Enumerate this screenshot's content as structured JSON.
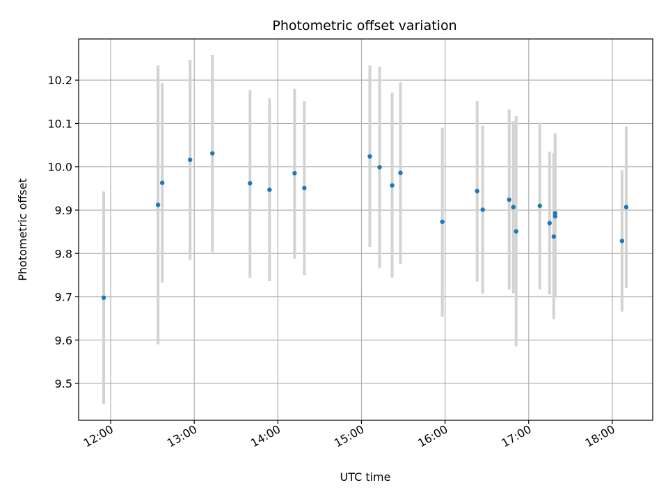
{
  "chart_data": {
    "type": "scatter",
    "title": "Photometric offset variation",
    "xlabel": "UTC time",
    "ylabel": "Photometric offset",
    "xlim": [
      "11:37",
      "18:29"
    ],
    "ylim": [
      9.415,
      10.295
    ],
    "grid": true,
    "x_ticks": [
      "12:00",
      "13:00",
      "14:00",
      "15:00",
      "16:00",
      "17:00",
      "18:00"
    ],
    "y_ticks": [
      "9.5",
      "9.6",
      "9.7",
      "9.8",
      "9.9",
      "10.0",
      "10.1",
      "10.2"
    ],
    "series": [
      {
        "marker_color": "#1f77b4",
        "errorbar_color": "#d3d3d3",
        "points": [
          {
            "t": "11:55",
            "y": 9.698,
            "lo": 9.452,
            "hi": 9.943
          },
          {
            "t": "12:34",
            "y": 9.912,
            "lo": 9.59,
            "hi": 10.234
          },
          {
            "t": "12:37",
            "y": 9.963,
            "lo": 9.733,
            "hi": 10.193
          },
          {
            "t": "12:57",
            "y": 10.016,
            "lo": 9.785,
            "hi": 10.247
          },
          {
            "t": "13:13",
            "y": 10.031,
            "lo": 9.803,
            "hi": 10.258
          },
          {
            "t": "13:40",
            "y": 9.962,
            "lo": 9.744,
            "hi": 10.177
          },
          {
            "t": "13:54",
            "y": 9.947,
            "lo": 9.736,
            "hi": 10.158
          },
          {
            "t": "14:12",
            "y": 9.985,
            "lo": 9.788,
            "hi": 10.18
          },
          {
            "t": "14:19",
            "y": 9.951,
            "lo": 9.75,
            "hi": 10.152
          },
          {
            "t": "15:06",
            "y": 10.024,
            "lo": 9.815,
            "hi": 10.234
          },
          {
            "t": "15:13",
            "y": 9.999,
            "lo": 9.766,
            "hi": 10.231
          },
          {
            "t": "15:22",
            "y": 9.957,
            "lo": 9.744,
            "hi": 10.171
          },
          {
            "t": "15:28",
            "y": 9.986,
            "lo": 9.776,
            "hi": 10.195
          },
          {
            "t": "15:58",
            "y": 9.873,
            "lo": 9.654,
            "hi": 10.09
          },
          {
            "t": "16:23",
            "y": 9.944,
            "lo": 9.735,
            "hi": 10.152
          },
          {
            "t": "16:27",
            "y": 9.901,
            "lo": 9.707,
            "hi": 10.095
          },
          {
            "t": "16:46",
            "y": 9.924,
            "lo": 9.716,
            "hi": 10.132
          },
          {
            "t": "16:49",
            "y": 9.907,
            "lo": 9.708,
            "hi": 10.105
          },
          {
            "t": "16:51",
            "y": 9.851,
            "lo": 9.586,
            "hi": 10.117
          },
          {
            "t": "17:08",
            "y": 9.91,
            "lo": 9.717,
            "hi": 10.102
          },
          {
            "t": "17:15",
            "y": 9.87,
            "lo": 9.705,
            "hi": 10.035
          },
          {
            "t": "17:18",
            "y": 9.839,
            "lo": 9.648,
            "hi": 10.032
          },
          {
            "t": "17:19",
            "y": 9.893,
            "lo": 9.708,
            "hi": 10.078
          },
          {
            "t": "17:19",
            "y": 9.886,
            "lo": 9.698,
            "hi": 10.075
          },
          {
            "t": "18:07",
            "y": 9.829,
            "lo": 9.666,
            "hi": 9.992
          },
          {
            "t": "18:10",
            "y": 9.907,
            "lo": 9.72,
            "hi": 10.093
          }
        ]
      }
    ]
  }
}
